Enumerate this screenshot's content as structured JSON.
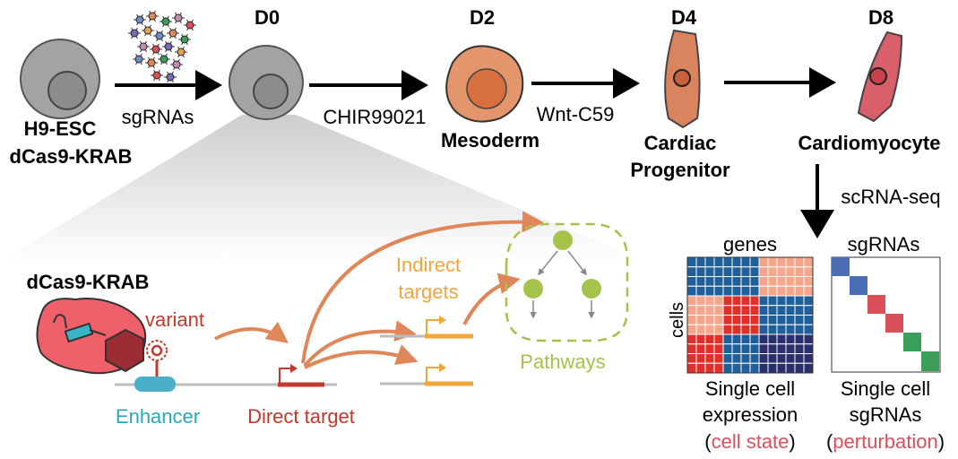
{
  "stages": {
    "d0": "D0",
    "d2": "D2",
    "d4": "D4",
    "d8": "D8"
  },
  "cells": {
    "esc_line1": "H9-ESC",
    "esc_line2": "dCas9-KRAB",
    "mesoderm": "Mesoderm",
    "cardiac_line1": "Cardiac",
    "cardiac_line2": "Progenitor",
    "cardiomyocyte": "Cardiomyocyte"
  },
  "treatments": {
    "sgrnas": "sgRNAs",
    "chir": "CHIR99021",
    "wnt": "Wnt-C59",
    "scrna": "scRNA-seq"
  },
  "mechanism": {
    "dcas9_label": "dCas9-KRAB",
    "variant": "variant",
    "enhancer": "Enhancer",
    "direct_target": "Direct target",
    "indirect_line1": "Indirect",
    "indirect_line2": "targets",
    "pathways": "Pathways"
  },
  "heatmaps": {
    "genes_title": "genes",
    "cells_label": "cells",
    "sgrnas_title": "sgRNAs",
    "expr_line1": "Single cell",
    "expr_line2": "expression",
    "expr_paren_open": "(",
    "expr_highlight": "cell state",
    "expr_paren_close": ")",
    "sg_line1": "Single cell",
    "sg_line2": "sgRNAs",
    "sg_paren_open": "(",
    "sg_highlight": "perturbation",
    "sg_paren_close": ")"
  },
  "colors": {
    "cell_gray": "#9e9e9e",
    "mesoderm": "#e3956c",
    "progenitor": "#d9845f",
    "cardiomyocyte": "#d9606a",
    "arrow_orange": "#e0875a",
    "variant_red": "#c0392b",
    "enhancer_teal": "#2aa8b8",
    "indirect_orange": "#f3a53a",
    "pathway_green": "#a5c24a",
    "heat_blue": "#1f5f9a",
    "heat_salmon": "#f4a58a",
    "heat_red": "#e0302c",
    "heat_navy": "#2b2f6b"
  }
}
